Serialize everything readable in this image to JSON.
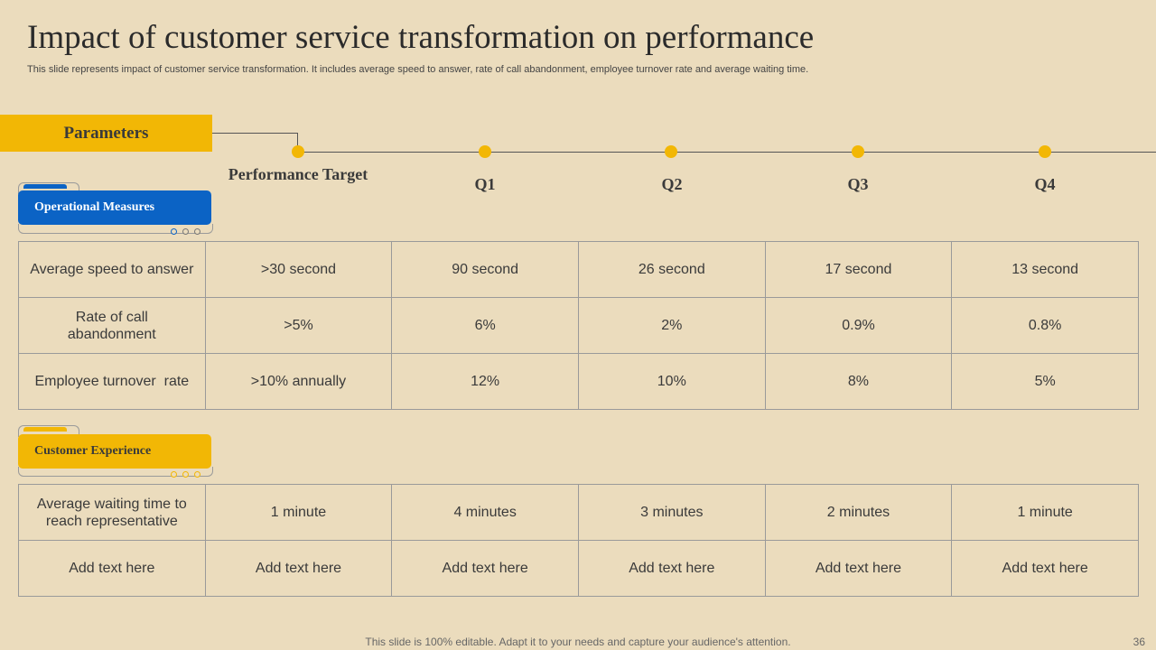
{
  "title": "Impact of customer service transformation on performance",
  "subtitle": "This slide represents impact of customer service transformation. It includes average speed to answer, rate of call abandonment, employee turnover rate and average waiting time.",
  "parameters_label": "Parameters",
  "columns": [
    "Performance Target",
    "Q1",
    "Q2",
    "Q3",
    "Q4"
  ],
  "sections": {
    "operational": {
      "label": "Operational Measures",
      "rows": [
        [
          "Average speed to answer",
          ">30 second",
          "90 second",
          "26 second",
          "17 second",
          "13 second"
        ],
        [
          "Rate of call abandonment",
          ">5%",
          "6%",
          "2%",
          "0.9%",
          "0.8%"
        ],
        [
          "Employee turnover  rate",
          ">10% annually",
          "12%",
          "10%",
          "8%",
          "5%"
        ]
      ]
    },
    "customer": {
      "label": "Customer Experience",
      "rows": [
        [
          "Average waiting time to reach representative",
          "1 minute",
          "4 minutes",
          "3 minutes",
          "2 minutes",
          "1 minute"
        ],
        [
          "Add text here",
          "Add text here",
          "Add text here",
          "Add text here",
          "Add text here",
          "Add text here"
        ]
      ]
    }
  },
  "colors": {
    "background": "#EBDCBD",
    "accent_yellow": "#F2B705",
    "accent_blue": "#0B63C5"
  },
  "footer": "This slide is 100% editable. Adapt it to your needs and capture your audience's attention.",
  "page_number": "36"
}
